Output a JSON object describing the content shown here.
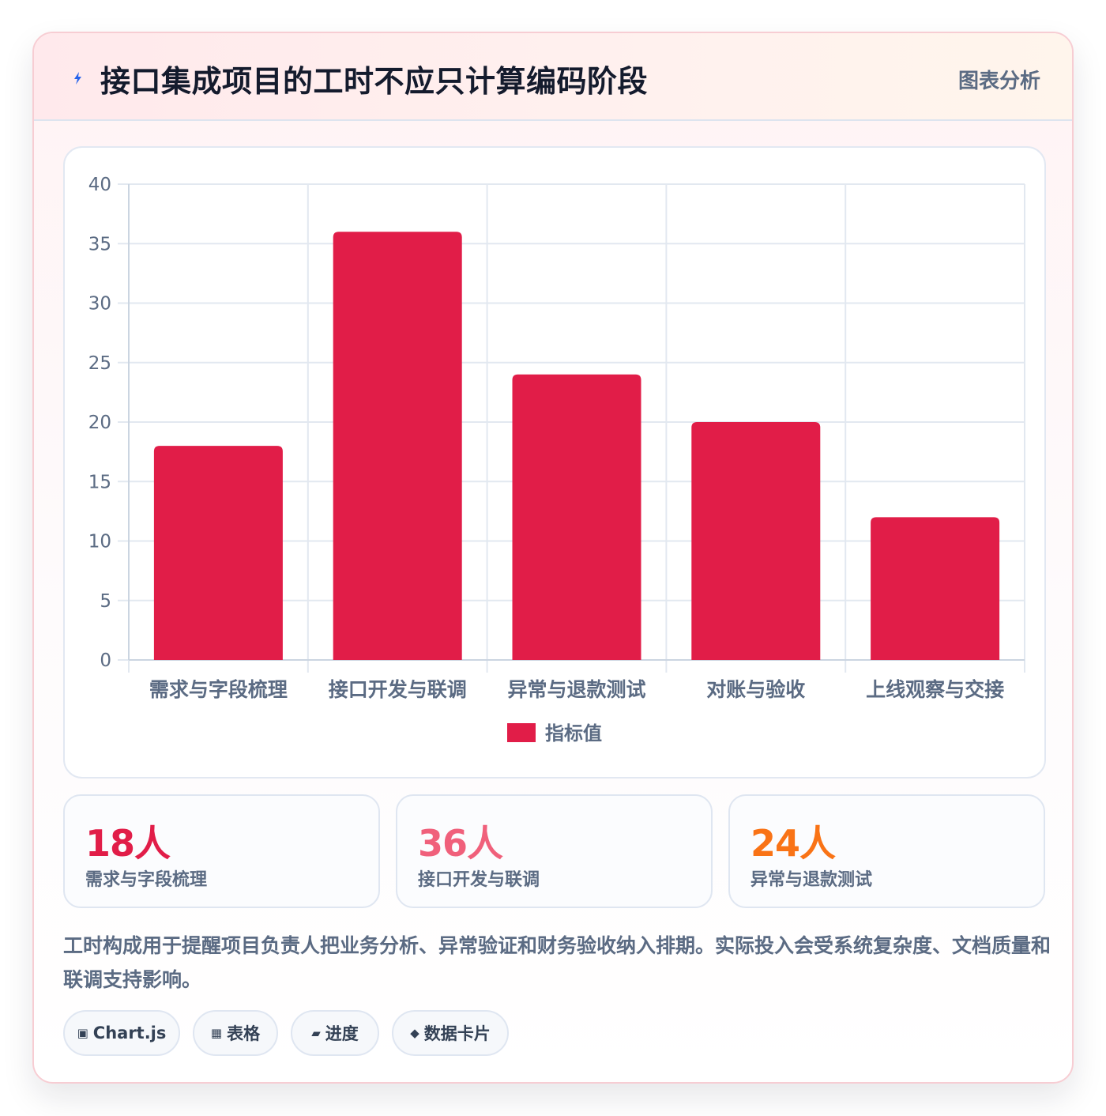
{
  "header": {
    "title": "接口集成项目的工时不应只计算编码阶段",
    "badge": "图表分析",
    "icon": "lightning-bolt-icon"
  },
  "chart_data": {
    "type": "bar",
    "categories": [
      "需求与字段梳理",
      "接口开发与联调",
      "异常与退款测试",
      "对账与验收",
      "上线观察与交接"
    ],
    "series": [
      {
        "name": "指标值",
        "values": [
          18,
          36,
          24,
          20,
          12
        ],
        "color": "#e11d48"
      }
    ],
    "ylim": [
      0,
      40
    ],
    "yticks": [
      0,
      5,
      10,
      15,
      20,
      25,
      30,
      35,
      40
    ],
    "grid": true,
    "legend": "bottom"
  },
  "stats": [
    {
      "value": "18人",
      "label": "需求与字段梳理",
      "color": "#e11d48"
    },
    {
      "value": "36人",
      "label": "接口开发与联调",
      "color": "#f0607b"
    },
    {
      "value": "24人",
      "label": "异常与退款测试",
      "color": "#f97316"
    }
  ],
  "description": "工时构成用于提醒项目负责人把业务分析、异常验证和财务验收纳入排期。实际投入会受系统复杂度、文档质量和联调支持影响。",
  "chips": [
    {
      "icon": "▣",
      "icon_name": "chart-icon",
      "label": "Chart.js"
    },
    {
      "icon": "▦",
      "icon_name": "table-icon",
      "label": "表格"
    },
    {
      "icon": "▰",
      "icon_name": "progress-icon",
      "label": "进度"
    },
    {
      "icon": "◆",
      "icon_name": "card-icon",
      "label": "数据卡片"
    }
  ]
}
